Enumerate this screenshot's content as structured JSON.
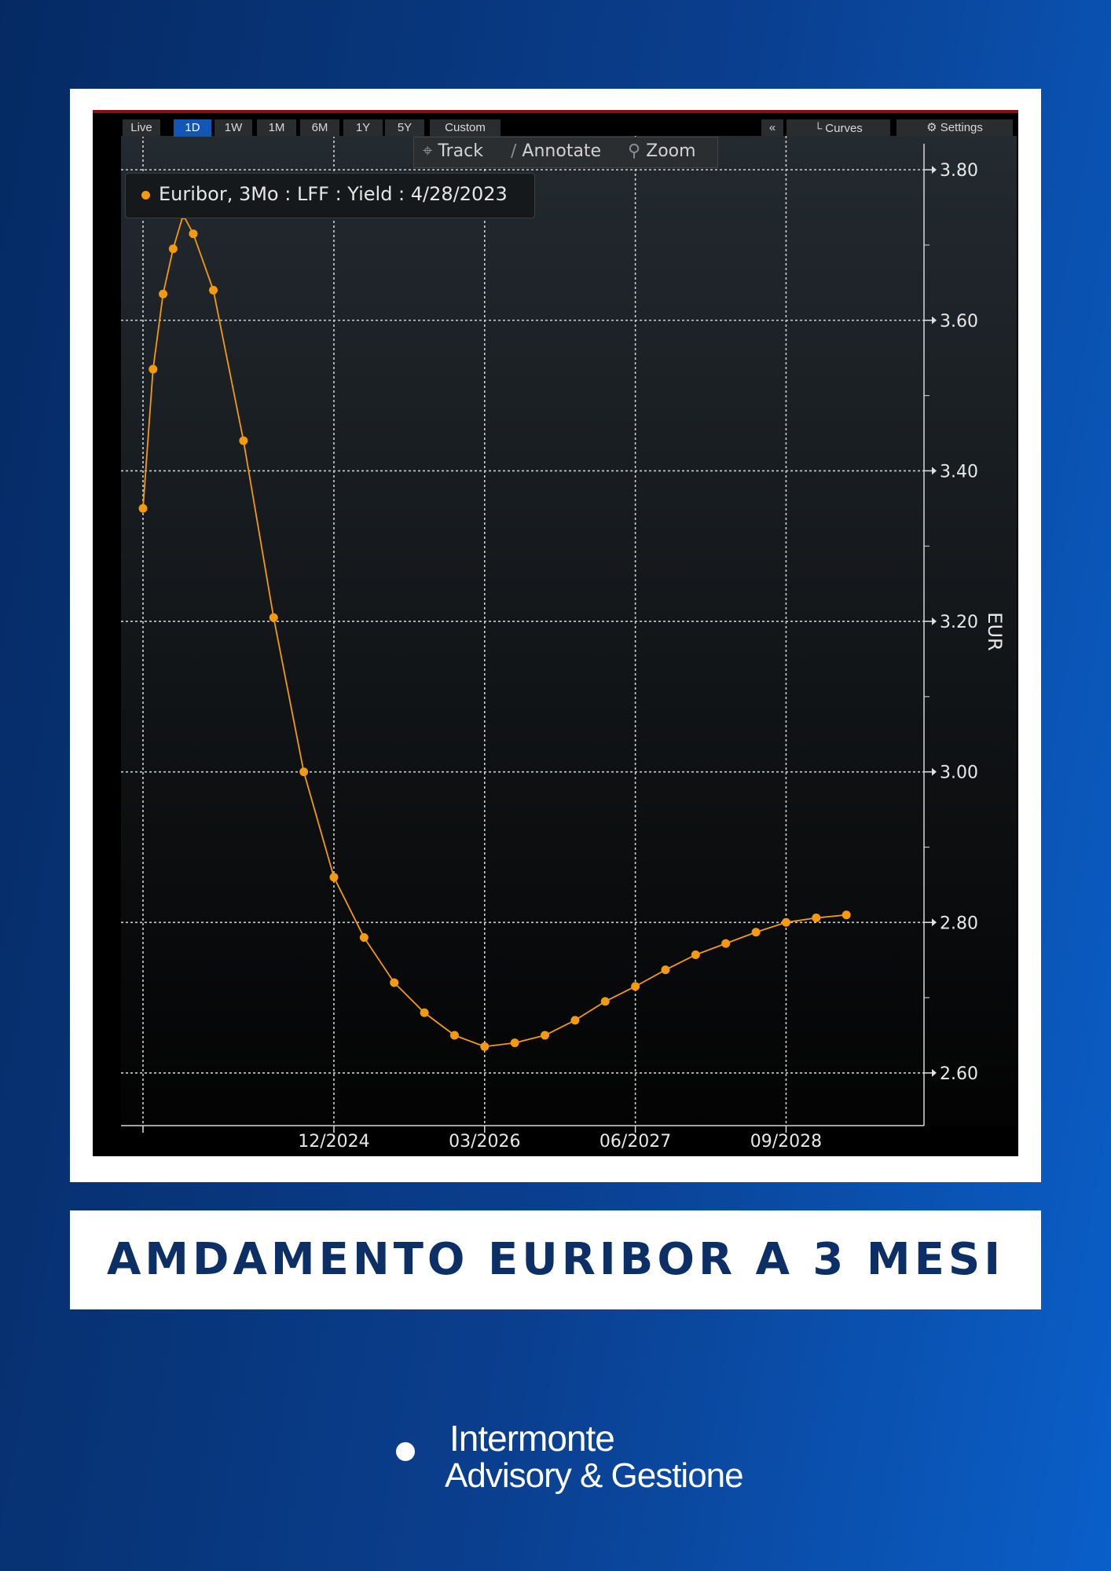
{
  "toolbar": {
    "ranges": [
      "Live",
      "1D",
      "1W",
      "1M",
      "6M",
      "1Y",
      "5Y",
      "Custom"
    ],
    "active_range": "1D",
    "collapse_label": "«",
    "curves_label": "Curves",
    "settings_label": "Settings",
    "track_label": "Track",
    "annotate_label": "Annotate",
    "zoom_label": "Zoom"
  },
  "legend": {
    "text": "Euribor, 3Mo : LFF : Yield : 4/28/2023"
  },
  "colors": {
    "line": "#f39a0e",
    "background": "#000000",
    "grid": "#cfcfcf",
    "title": "#0c2f66"
  },
  "chart_data": {
    "type": "line",
    "title": "",
    "xlabel": "",
    "ylabel": "EUR",
    "x_tick_labels": [
      "12/2024",
      "03/2026",
      "06/2027",
      "09/2028"
    ],
    "y_tick_labels": [
      "3.80",
      "3.60",
      "3.40",
      "3.20",
      "3.00",
      "2.80",
      "2.60"
    ],
    "ylim": [
      2.53,
      3.845
    ],
    "grid": true,
    "series": [
      {
        "name": "Euribor, 3Mo : LFF : Yield : 4/28/2023",
        "x": [
          "05/2023",
          "06/2023",
          "07/2023",
          "08/2023",
          "09/2023",
          "10/2023",
          "12/2023",
          "03/2024",
          "06/2024",
          "09/2024",
          "12/2024",
          "03/2025",
          "06/2025",
          "09/2025",
          "12/2025",
          "03/2026",
          "06/2026",
          "09/2026",
          "12/2026",
          "03/2027",
          "06/2027",
          "09/2027",
          "12/2027",
          "03/2028",
          "06/2028",
          "09/2028",
          "12/2028",
          "03/2029"
        ],
        "values": [
          3.35,
          3.535,
          3.635,
          3.695,
          3.74,
          3.715,
          3.64,
          3.44,
          3.205,
          3.0,
          2.86,
          2.78,
          2.72,
          2.68,
          2.65,
          2.635,
          2.64,
          2.65,
          2.67,
          2.695,
          2.715,
          2.737,
          2.757,
          2.772,
          2.787,
          2.8,
          2.806,
          2.81
        ]
      }
    ]
  },
  "banner": {
    "title": "AMDAMENTO EURIBOR A 3 MESI"
  },
  "logo": {
    "name": "Intermonte",
    "subtitle": "Advisory & Gestione"
  }
}
